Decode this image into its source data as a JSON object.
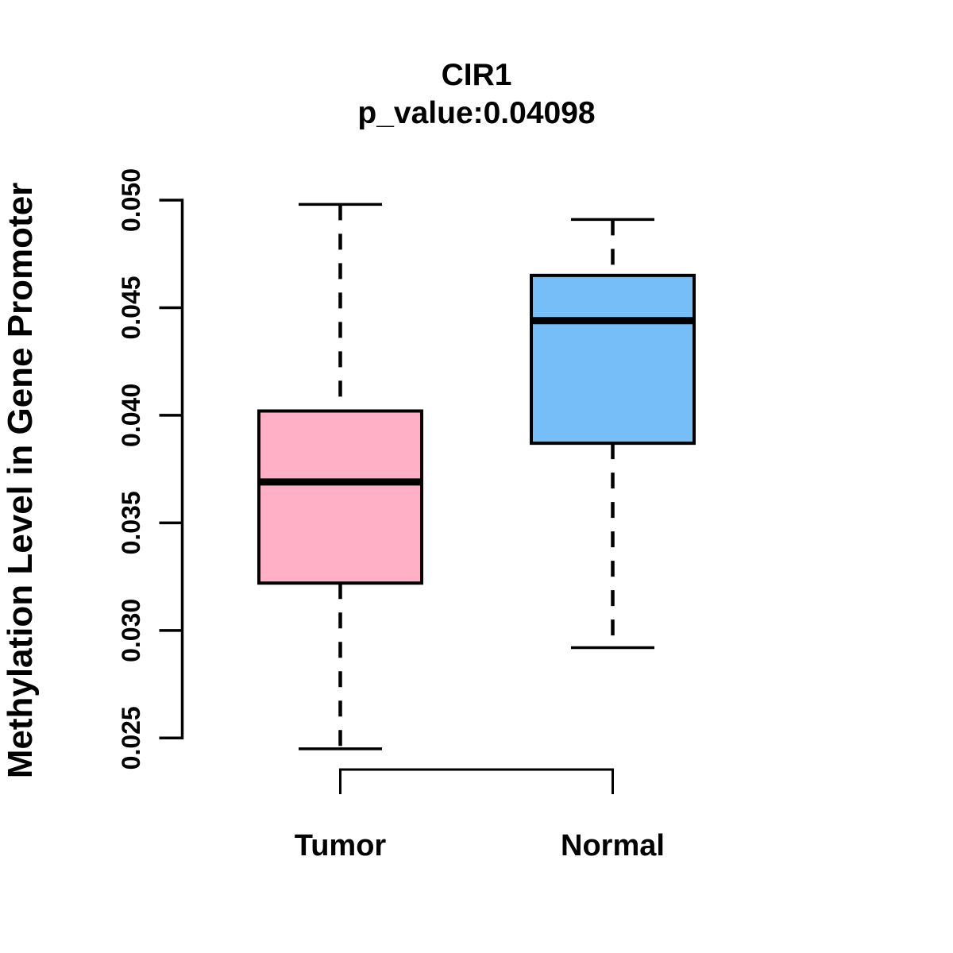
{
  "chart_data": {
    "type": "boxplot",
    "title": "CIR1",
    "subtitle": "p_value:0.04098",
    "gene": "CIR1",
    "p_value": 0.04098,
    "ylabel": "Methylation Level in Gene Promoter",
    "ylim": [
      0.025,
      0.05
    ],
    "yticks": [
      0.025,
      0.03,
      0.035,
      0.04,
      0.045,
      0.05
    ],
    "ytick_labels": [
      "0.025",
      "0.030",
      "0.035",
      "0.040",
      "0.045",
      "0.050"
    ],
    "categories": [
      "Tumor",
      "Normal"
    ],
    "series": [
      {
        "name": "Tumor",
        "color": "#FFB0C6",
        "whisker_low": 0.0245,
        "q1": 0.0322,
        "median": 0.0369,
        "q3": 0.0402,
        "whisker_high": 0.0498
      },
      {
        "name": "Normal",
        "color": "#75BEF8",
        "whisker_low": 0.0292,
        "q1": 0.0387,
        "median": 0.0444,
        "q3": 0.0465,
        "whisker_high": 0.0491
      }
    ],
    "comparison_bracket": {
      "from": "Tumor",
      "to": "Normal"
    },
    "whisker_line_style": "dashed",
    "box_border_color": "#000000",
    "median_color": "#000000",
    "axis_color": "#000000",
    "legend": "none",
    "grid": "off"
  }
}
